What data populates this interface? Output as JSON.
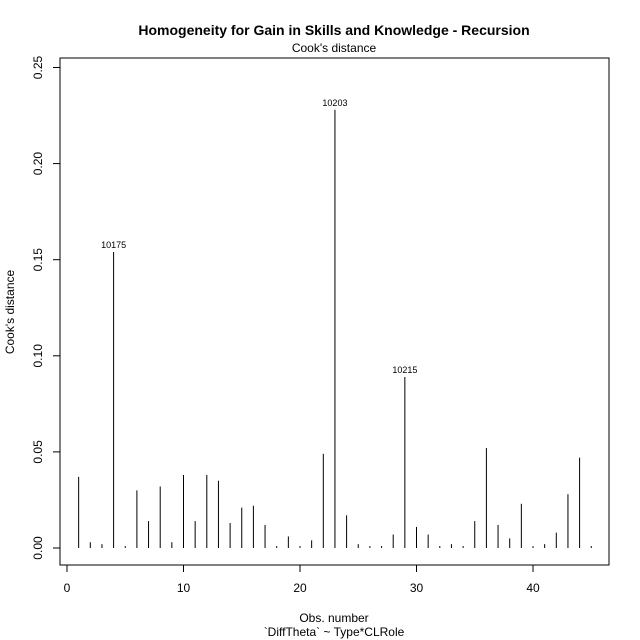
{
  "chart_data": {
    "type": "bar",
    "title": "Homogeneity for Gain in Skills and Knowledge - Recursion",
    "subtitle": "Cook's distance",
    "xlabel": "Obs. number",
    "xlabel_formula": "`DiffTheta` ~ Type*CLRole",
    "ylabel": "Cook's distance",
    "xlim": [
      0,
      46
    ],
    "ylim": [
      0,
      0.25
    ],
    "x_ticks": [
      "0",
      "10",
      "20",
      "30",
      "40"
    ],
    "x_tick_values": [
      0,
      10,
      20,
      30,
      40
    ],
    "y_ticks": [
      "0.00",
      "0.05",
      "0.10",
      "0.15",
      "0.20",
      "0.25"
    ],
    "y_tick_values": [
      0,
      0.05,
      0.1,
      0.15,
      0.2,
      0.25
    ],
    "x": [
      1,
      2,
      3,
      4,
      5,
      6,
      7,
      8,
      9,
      10,
      11,
      12,
      13,
      14,
      15,
      16,
      17,
      18,
      19,
      20,
      21,
      22,
      23,
      24,
      25,
      26,
      27,
      28,
      29,
      30,
      31,
      32,
      33,
      34,
      35,
      36,
      37,
      38,
      39,
      40,
      41,
      42,
      43,
      44,
      45
    ],
    "values": [
      0.037,
      0.003,
      0.002,
      0.154,
      0.001,
      0.03,
      0.014,
      0.032,
      0.003,
      0.038,
      0.014,
      0.038,
      0.035,
      0.013,
      0.021,
      0.022,
      0.012,
      0.001,
      0.006,
      0.001,
      0.004,
      0.049,
      0.228,
      0.017,
      0.002,
      0.001,
      0.001,
      0.007,
      0.089,
      0.011,
      0.007,
      0.001,
      0.002,
      0.001,
      0.014,
      0.052,
      0.012,
      0.005,
      0.023,
      0.001,
      0.002,
      0.008,
      0.028,
      0.047,
      0.001
    ],
    "annotations": [
      {
        "obs": 4,
        "label": "10175"
      },
      {
        "obs": 23,
        "label": "10203"
      },
      {
        "obs": 29,
        "label": "10215"
      }
    ],
    "grid": false,
    "legend": "none"
  }
}
